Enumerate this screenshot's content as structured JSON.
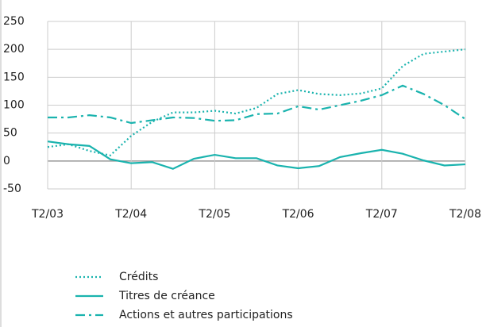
{
  "chart_data": {
    "type": "line",
    "categories": [
      "T2/03",
      null,
      null,
      null,
      "T2/04",
      null,
      null,
      null,
      "T2/05",
      null,
      null,
      null,
      "T2/06",
      null,
      null,
      null,
      "T2/07",
      null,
      null,
      null,
      "T2/08"
    ],
    "series": [
      {
        "name": "Crédits",
        "color": "#1ab3ae",
        "dash": "dotted",
        "values": [
          25,
          30,
          18,
          10,
          45,
          70,
          87,
          87,
          90,
          85,
          95,
          120,
          127,
          120,
          118,
          121,
          130,
          170,
          192,
          196,
          200
        ]
      },
      {
        "name": "Titres de créance",
        "color": "#1ab3ae",
        "dash": "solid",
        "values": [
          35,
          30,
          27,
          3,
          -4,
          -2,
          -14,
          4,
          11,
          5,
          5,
          -8,
          -13,
          -9,
          7,
          14,
          20,
          13,
          1,
          -8,
          -6
        ]
      },
      {
        "name": "Actions et autres participations",
        "color": "#1ab3ae",
        "dash": "dashdot",
        "values": [
          78,
          78,
          82,
          78,
          68,
          73,
          78,
          77,
          72,
          73,
          84,
          85,
          98,
          92,
          100,
          108,
          118,
          135,
          120,
          100,
          75
        ]
      }
    ],
    "ylim": [
      -50,
      250
    ],
    "yticks": [
      -50,
      0,
      50,
      100,
      150,
      200,
      250
    ],
    "grid": true
  }
}
